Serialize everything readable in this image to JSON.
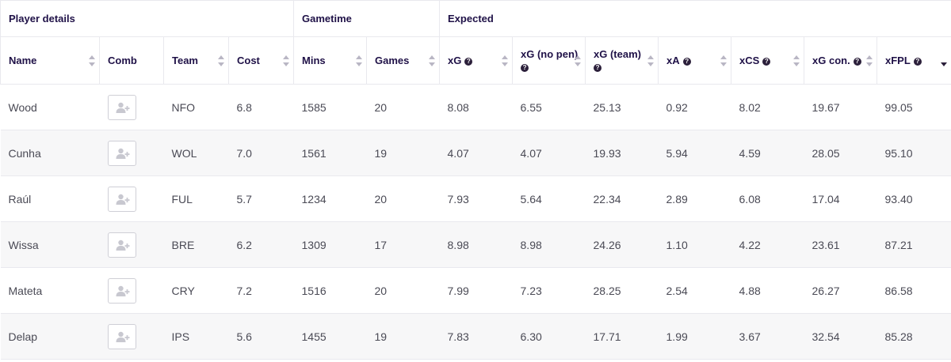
{
  "groups": {
    "player_details": "Player details",
    "gametime": "Gametime",
    "expected": "Expected"
  },
  "columns": {
    "name": "Name",
    "comb": "Comb",
    "team": "Team",
    "cost": "Cost",
    "mins": "Mins",
    "games": "Games",
    "xg": "xG",
    "xg_no_pen": "xG (no pen)",
    "xg_team": "xG (team)",
    "xa": "xA",
    "xcs": "xCS",
    "xg_con": "xG con.",
    "xfpl": "xFPL"
  },
  "info_glyph": "?",
  "icons": {
    "comb": "add-user-icon",
    "info": "question-icon",
    "sort": "sort-icon"
  },
  "sorted_by": "xFPL",
  "colors": {
    "header_text": "#1f1147",
    "row_alt": "#f7f7f8",
    "border": "#e9e9ee"
  },
  "rows": [
    {
      "name": "Wood",
      "team": "NFO",
      "cost": "6.8",
      "mins": "1585",
      "games": "20",
      "xg": "8.08",
      "xg_no_pen": "6.55",
      "xg_team": "25.13",
      "xa": "0.92",
      "xcs": "8.02",
      "xg_con": "19.67",
      "xfpl": "99.05"
    },
    {
      "name": "Cunha",
      "team": "WOL",
      "cost": "7.0",
      "mins": "1561",
      "games": "19",
      "xg": "4.07",
      "xg_no_pen": "4.07",
      "xg_team": "19.93",
      "xa": "5.94",
      "xcs": "4.59",
      "xg_con": "28.05",
      "xfpl": "95.10"
    },
    {
      "name": "Raúl",
      "team": "FUL",
      "cost": "5.7",
      "mins": "1234",
      "games": "20",
      "xg": "7.93",
      "xg_no_pen": "5.64",
      "xg_team": "22.34",
      "xa": "2.89",
      "xcs": "6.08",
      "xg_con": "17.04",
      "xfpl": "93.40"
    },
    {
      "name": "Wissa",
      "team": "BRE",
      "cost": "6.2",
      "mins": "1309",
      "games": "17",
      "xg": "8.98",
      "xg_no_pen": "8.98",
      "xg_team": "24.26",
      "xa": "1.10",
      "xcs": "4.22",
      "xg_con": "23.61",
      "xfpl": "87.21"
    },
    {
      "name": "Mateta",
      "team": "CRY",
      "cost": "7.2",
      "mins": "1516",
      "games": "20",
      "xg": "7.99",
      "xg_no_pen": "7.23",
      "xg_team": "28.25",
      "xa": "2.54",
      "xcs": "4.88",
      "xg_con": "26.27",
      "xfpl": "86.58"
    },
    {
      "name": "Delap",
      "team": "IPS",
      "cost": "5.6",
      "mins": "1455",
      "games": "19",
      "xg": "7.83",
      "xg_no_pen": "6.30",
      "xg_team": "17.71",
      "xa": "1.99",
      "xcs": "3.67",
      "xg_con": "32.54",
      "xfpl": "85.28"
    }
  ]
}
